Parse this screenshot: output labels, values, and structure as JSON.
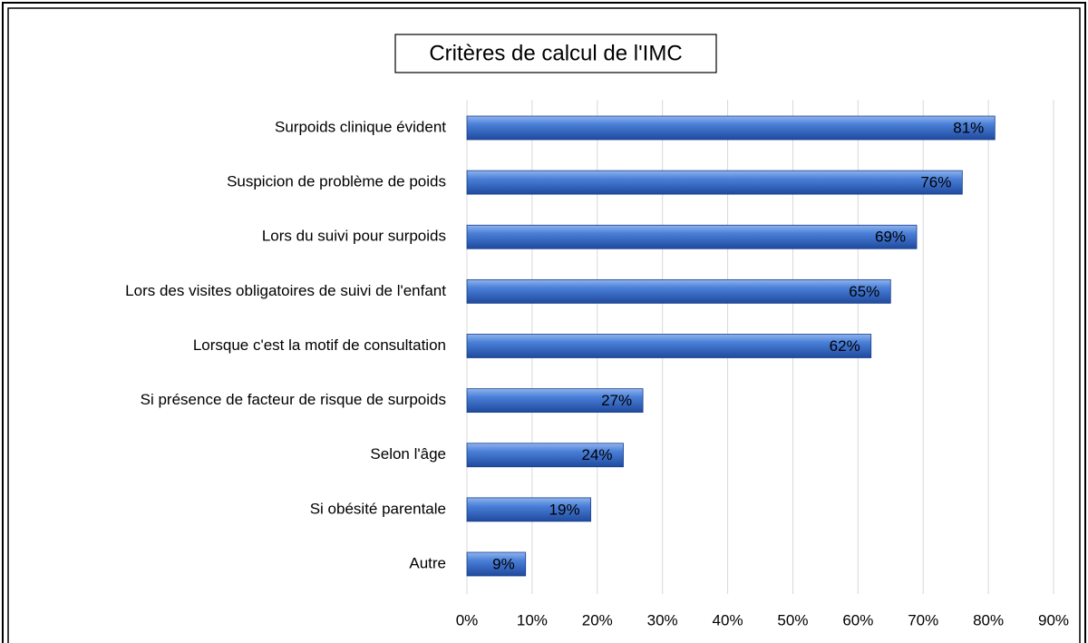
{
  "chart_data": {
    "type": "bar",
    "orientation": "horizontal",
    "title": "Critères de calcul de l'IMC",
    "categories": [
      "Surpoids clinique évident",
      "Suspicion de problème de poids",
      "Lors du suivi pour surpoids",
      "Lors des visites obligatoires de suivi de l'enfant",
      "Lorsque c'est la motif de consultation",
      "Si présence de facteur de risque de surpoids",
      "Selon l'âge",
      "Si obésité parentale",
      "Autre"
    ],
    "values": [
      81,
      76,
      69,
      65,
      62,
      27,
      24,
      19,
      9
    ],
    "value_labels": [
      "81%",
      "76%",
      "69%",
      "65%",
      "62%",
      "27%",
      "24%",
      "19%",
      "9%"
    ],
    "color": "#3a6fd0",
    "xlim": [
      0,
      90
    ],
    "xticks": [
      {
        "value": 0,
        "label": "0%"
      },
      {
        "value": 10,
        "label": "10%"
      },
      {
        "value": 20,
        "label": "20%"
      },
      {
        "value": 30,
        "label": "30%"
      },
      {
        "value": 40,
        "label": "40%"
      },
      {
        "value": 50,
        "label": "50%"
      },
      {
        "value": 60,
        "label": "60%"
      },
      {
        "value": 70,
        "label": "70%"
      },
      {
        "value": 80,
        "label": "80%"
      },
      {
        "value": 90,
        "label": "90%"
      }
    ],
    "grid": true
  }
}
